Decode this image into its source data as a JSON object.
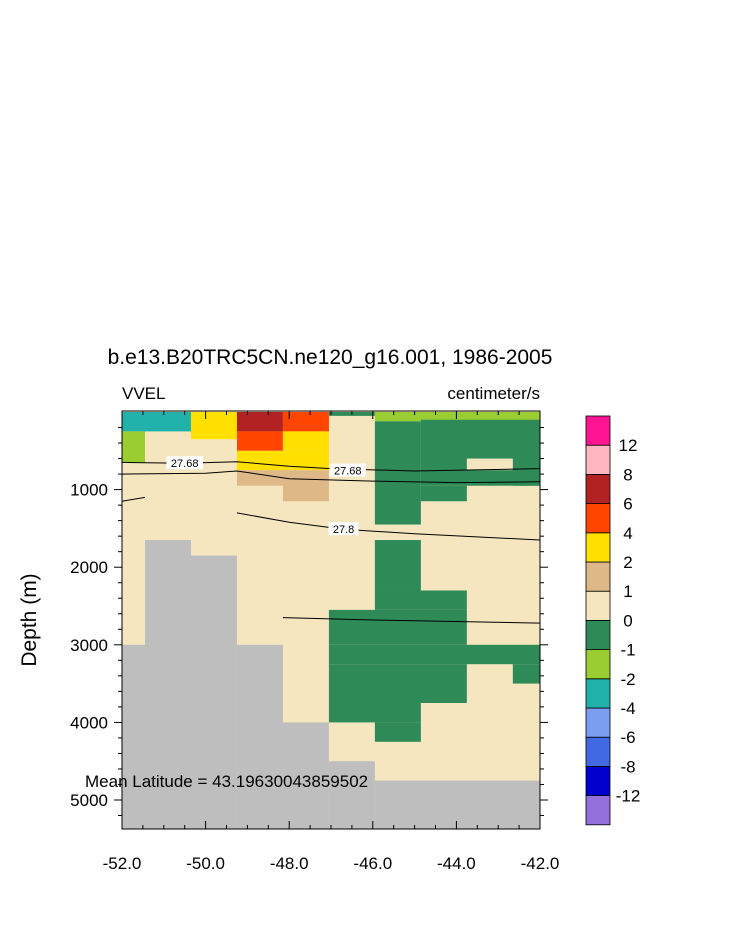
{
  "chart_data": {
    "type": "heatmap",
    "title": "b.e13.B20TRC5CN.ne120_g16.001, 1986-2005",
    "variable": "VVEL",
    "units": "centimeter/s",
    "ylabel": "Depth (m)",
    "xlabel": "",
    "annotation": "Mean Latitude = 43.19630043859502",
    "xlim": [
      -52.0,
      -42.0
    ],
    "ylim_depth": [
      0,
      5400
    ],
    "x_ticks": [
      -52.0,
      -50.0,
      -48.0,
      -46.0,
      -44.0,
      -42.0
    ],
    "x_tick_labels": [
      "-52.0",
      "-50.0",
      "-48.0",
      "-46.0",
      "-44.0",
      "-42.0"
    ],
    "y_ticks": [
      1000,
      2000,
      3000,
      4000,
      5000
    ],
    "y_tick_labels": [
      "1000",
      "2000",
      "3000",
      "4000",
      "5000"
    ],
    "x_edges": [
      -52.0,
      -51.45,
      -50.9,
      -50.35,
      -49.25,
      -48.15,
      -47.05,
      -45.95,
      -44.85,
      -43.75,
      -42.65,
      -42.0
    ],
    "z_edges": [
      0,
      50,
      250,
      500,
      750,
      950,
      1150,
      1450,
      1650,
      1850,
      2300,
      2550,
      3000,
      3250,
      3500,
      3750,
      4000,
      4250,
      4500,
      4750,
      5400
    ],
    "color_scale": {
      "levels": [
        "-12",
        "-8",
        "-6",
        "-4",
        "-2",
        "-1",
        "0",
        "1",
        "2",
        "4",
        "6",
        "8",
        "12"
      ],
      "colors": [
        "#9370db",
        "#0000cd",
        "#4169e1",
        "#7b9ef0",
        "#20b2aa",
        "#9acd32",
        "#2e8b57",
        "#f5e6c0",
        "#deb887",
        "#ffe000",
        "#ff4500",
        "#b22222",
        "#ffb6c1",
        "#ff1493"
      ],
      "land": "#bebebe"
    },
    "cells": [
      {
        "x": [
          -52.0,
          -50.35
        ],
        "z": [
          0,
          250
        ],
        "value": -3
      },
      {
        "x": [
          -52.0,
          -51.45
        ],
        "z": [
          250,
          650
        ],
        "value": -1.5
      },
      {
        "x": [
          -50.35,
          -49.25
        ],
        "z": [
          0,
          350
        ],
        "value": 3
      },
      {
        "x": [
          -49.25,
          -48.15
        ],
        "z": [
          0,
          250
        ],
        "value": 7
      },
      {
        "x": [
          -49.25,
          -48.15
        ],
        "z": [
          250,
          500
        ],
        "value": 5
      },
      {
        "x": [
          -48.15,
          -47.05
        ],
        "z": [
          0,
          250
        ],
        "value": 5
      },
      {
        "x": [
          -49.25,
          -47.05
        ],
        "z": [
          500,
          750
        ],
        "value": 3
      },
      {
        "x": [
          -48.15,
          -47.05
        ],
        "z": [
          250,
          500
        ],
        "value": 3
      },
      {
        "x": [
          -49.25,
          -48.15
        ],
        "z": [
          750,
          950
        ],
        "value": 1.5
      },
      {
        "x": [
          -48.15,
          -47.05
        ],
        "z": [
          750,
          1150
        ],
        "value": 1.5
      },
      {
        "x": [
          -47.05,
          -45.95
        ],
        "z": [
          0,
          50
        ],
        "value": -0.5
      },
      {
        "x": [
          -45.95,
          -42.0
        ],
        "z": [
          0,
          120
        ],
        "value": -1.5
      },
      {
        "x": [
          -45.95,
          -44.85
        ],
        "z": [
          120,
          1450
        ],
        "value": -0.5
      },
      {
        "x": [
          -44.85,
          -42.0
        ],
        "z": [
          100,
          950
        ],
        "value": -0.5
      },
      {
        "x": [
          -44.85,
          -43.75
        ],
        "z": [
          950,
          1150
        ],
        "value": -0.5
      },
      {
        "x": [
          -43.75,
          -42.65
        ],
        "z": [
          600,
          750
        ],
        "value": 0.5
      },
      {
        "x": [
          -42.65,
          -42.0
        ],
        "z": [
          750,
          950
        ],
        "value": -0.5
      },
      {
        "x": [
          -45.95,
          -44.85
        ],
        "z": [
          1650,
          2300
        ],
        "value": -0.5
      },
      {
        "x": [
          -47.05,
          -43.75
        ],
        "z": [
          2550,
          3000
        ],
        "value": -0.5
      },
      {
        "x": [
          -45.95,
          -43.75
        ],
        "z": [
          2300,
          2550
        ],
        "value": -0.5
      },
      {
        "x": [
          -47.05,
          -42.0
        ],
        "z": [
          3000,
          3250
        ],
        "value": -0.5
      },
      {
        "x": [
          -47.05,
          -43.75
        ],
        "z": [
          3250,
          3750
        ],
        "value": -0.5
      },
      {
        "x": [
          -42.65,
          -42.0
        ],
        "z": [
          3250,
          3500
        ],
        "value": -0.5
      },
      {
        "x": [
          -47.05,
          -44.85
        ],
        "z": [
          3750,
          4000
        ],
        "value": -0.5
      },
      {
        "x": [
          -45.95,
          -44.85
        ],
        "z": [
          4000,
          4250
        ],
        "value": -0.5
      }
    ],
    "land": [
      {
        "x": [
          -52.0,
          -51.45
        ],
        "z": [
          3000,
          5400
        ]
      },
      {
        "x": [
          -51.45,
          -50.35
        ],
        "z": [
          1650,
          5400
        ]
      },
      {
        "x": [
          -50.35,
          -49.25
        ],
        "z": [
          1850,
          5400
        ]
      },
      {
        "x": [
          -49.25,
          -48.15
        ],
        "z": [
          3000,
          5400
        ]
      },
      {
        "x": [
          -48.15,
          -47.05
        ],
        "z": [
          4000,
          5400
        ]
      },
      {
        "x": [
          -47.05,
          -45.95
        ],
        "z": [
          4500,
          5400
        ]
      },
      {
        "x": [
          -45.95,
          -42.0
        ],
        "z": [
          4750,
          5400
        ]
      }
    ],
    "contours": [
      {
        "label": "27.68",
        "label_at": [
          -50.5,
          660
        ],
        "points": [
          [
            -52.0,
            650
          ],
          [
            -50.5,
            660
          ],
          [
            -49.25,
            640
          ],
          [
            -48.0,
            700
          ],
          [
            -47.0,
            730
          ],
          [
            -45.0,
            760
          ],
          [
            -42.0,
            730
          ]
        ]
      },
      {
        "label": "27.68",
        "label_at": [
          -46.6,
          755
        ],
        "points": []
      },
      {
        "label": "",
        "points": [
          [
            -52.0,
            800
          ],
          [
            -50.0,
            790
          ],
          [
            -49.25,
            760
          ],
          [
            -48.0,
            860
          ],
          [
            -46.0,
            890
          ],
          [
            -44.0,
            910
          ],
          [
            -42.0,
            900
          ]
        ]
      },
      {
        "label": "",
        "points": [
          [
            -52.0,
            1150
          ],
          [
            -51.45,
            1100
          ]
        ]
      },
      {
        "label": "27.8",
        "label_at": [
          -46.7,
          1510
        ],
        "points": [
          [
            -49.25,
            1300
          ],
          [
            -48.0,
            1420
          ],
          [
            -46.7,
            1510
          ],
          [
            -45.0,
            1570
          ],
          [
            -42.0,
            1650
          ]
        ]
      },
      {
        "label": "",
        "points": [
          [
            -48.15,
            2650
          ],
          [
            -46.0,
            2680
          ],
          [
            -42.0,
            2720
          ]
        ]
      }
    ]
  }
}
